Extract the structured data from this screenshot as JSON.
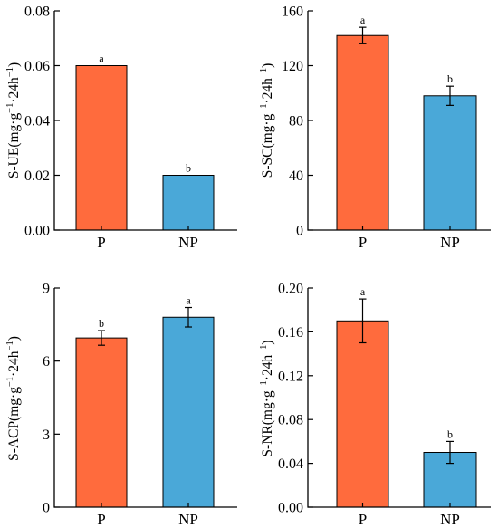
{
  "colors": {
    "P": "#ff6b3d",
    "NP": "#4aa8d8"
  },
  "chart_data": [
    {
      "type": "bar",
      "ylabel_main": "S-UE(mg·g",
      "ylabel_sup1": "−1",
      "ylabel_mid": "·24h",
      "ylabel_sup2": "−1",
      "ylabel_end": ")",
      "categories": [
        "P",
        "NP"
      ],
      "values": [
        0.06,
        0.02
      ],
      "errors": [
        0,
        0
      ],
      "letters": [
        "a",
        "b"
      ],
      "ylim": [
        0,
        0.08
      ],
      "yticks": [
        0,
        0.02,
        0.04,
        0.06,
        0.08
      ],
      "ytick_labels": [
        "0.00",
        "0.02",
        "0.04",
        "0.06",
        "0.08"
      ]
    },
    {
      "type": "bar",
      "ylabel_main": "S-SC(mg·g",
      "ylabel_sup1": "−1",
      "ylabel_mid": "·24h",
      "ylabel_sup2": "−1",
      "ylabel_end": ")",
      "categories": [
        "P",
        "NP"
      ],
      "values": [
        142,
        98
      ],
      "errors": [
        6,
        7
      ],
      "letters": [
        "a",
        "b"
      ],
      "ylim": [
        0,
        160
      ],
      "yticks": [
        0,
        40,
        80,
        120,
        160
      ],
      "ytick_labels": [
        "0",
        "40",
        "80",
        "120",
        "160"
      ]
    },
    {
      "type": "bar",
      "ylabel_main": "S-ACP(mg·g",
      "ylabel_sup1": "−1",
      "ylabel_mid": "·24h",
      "ylabel_sup2": "−1",
      "ylabel_end": ")",
      "categories": [
        "P",
        "NP"
      ],
      "values": [
        6.95,
        7.8
      ],
      "errors": [
        0.3,
        0.4
      ],
      "letters": [
        "b",
        "a"
      ],
      "ylim": [
        0,
        9
      ],
      "yticks": [
        0,
        3,
        6,
        9
      ],
      "ytick_labels": [
        "0",
        "3",
        "6",
        "9"
      ]
    },
    {
      "type": "bar",
      "ylabel_main": "S-NR(mg·g",
      "ylabel_sup1": "−1",
      "ylabel_mid": "·24h",
      "ylabel_sup2": "−1",
      "ylabel_end": ")",
      "categories": [
        "P",
        "NP"
      ],
      "values": [
        0.17,
        0.05
      ],
      "errors": [
        0.02,
        0.01
      ],
      "letters": [
        "a",
        "b"
      ],
      "ylim": [
        0,
        0.2
      ],
      "yticks": [
        0,
        0.04,
        0.08,
        0.12,
        0.16,
        0.2
      ],
      "ytick_labels": [
        "0.00",
        "0.04",
        "0.08",
        "0.12",
        "0.16",
        "0.20"
      ]
    }
  ]
}
